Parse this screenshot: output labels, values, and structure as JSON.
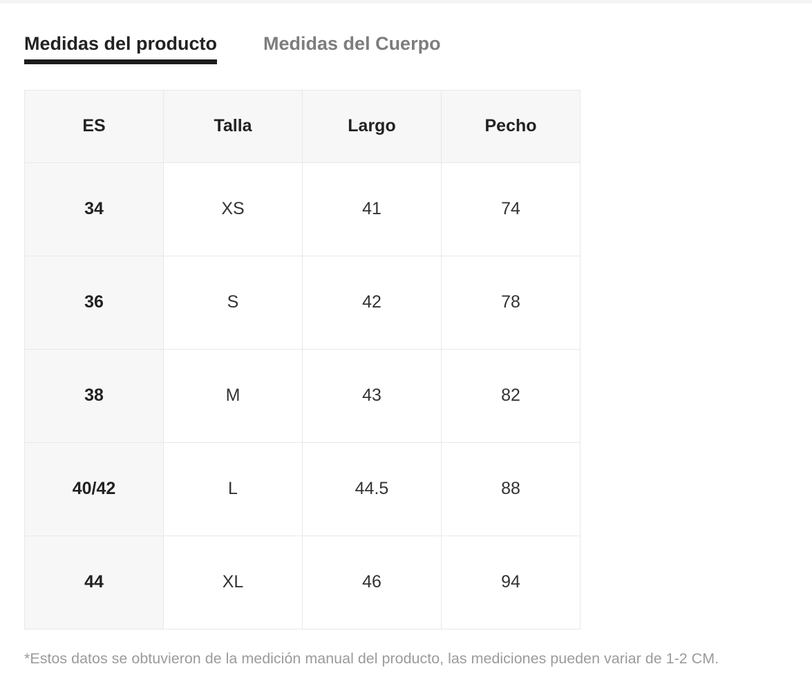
{
  "tabs": [
    {
      "label": "Medidas del producto",
      "active": true
    },
    {
      "label": "Medidas del Cuerpo",
      "active": false
    }
  ],
  "size_table": {
    "columns": [
      "ES",
      "Talla",
      "Largo",
      "Pecho"
    ],
    "rows": [
      [
        "34",
        "XS",
        "41",
        "74"
      ],
      [
        "36",
        "S",
        "42",
        "78"
      ],
      [
        "38",
        "M",
        "43",
        "82"
      ],
      [
        "40/42",
        "L",
        "44.5",
        "88"
      ],
      [
        "44",
        "XL",
        "46",
        "94"
      ]
    ]
  },
  "footnote": "*Estos datos se obtuvieron de la medición manual del producto, las mediciones pueden variar de 1-2 CM.",
  "colors": {
    "active_tab_text": "#222222",
    "active_tab_underline": "#1c1c1c",
    "inactive_tab_text": "#7d7d7d",
    "header_bg": "#f7f7f7",
    "cell_border": "#e8e8e8",
    "footnote_text": "#9b9b9b"
  }
}
